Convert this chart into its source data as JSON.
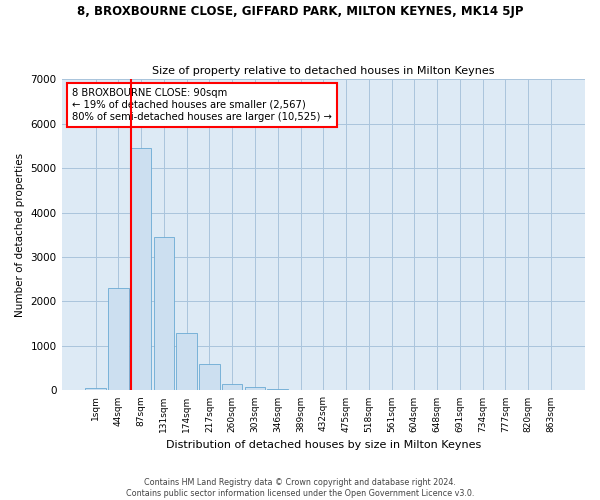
{
  "title": "8, BROXBOURNE CLOSE, GIFFARD PARK, MILTON KEYNES, MK14 5JP",
  "subtitle": "Size of property relative to detached houses in Milton Keynes",
  "xlabel": "Distribution of detached houses by size in Milton Keynes",
  "ylabel": "Number of detached properties",
  "bar_color": "#ccdff0",
  "bar_edge_color": "#6aaad4",
  "grid_color": "#aac4dc",
  "background_color": "#ddeaf5",
  "categories": [
    "1sqm",
    "44sqm",
    "87sqm",
    "131sqm",
    "174sqm",
    "217sqm",
    "260sqm",
    "303sqm",
    "346sqm",
    "389sqm",
    "432sqm",
    "475sqm",
    "518sqm",
    "561sqm",
    "604sqm",
    "648sqm",
    "691sqm",
    "734sqm",
    "777sqm",
    "820sqm",
    "863sqm"
  ],
  "values": [
    50,
    2300,
    5450,
    3450,
    1300,
    600,
    150,
    80,
    30,
    8,
    2,
    1,
    0,
    0,
    0,
    0,
    0,
    0,
    0,
    0,
    0
  ],
  "red_line_x": 2,
  "annotation_line1": "8 BROXBOURNE CLOSE: 90sqm",
  "annotation_line2": "← 19% of detached houses are smaller (2,567)",
  "annotation_line3": "80% of semi-detached houses are larger (10,525) →",
  "annotation_box_color": "white",
  "annotation_box_edge": "red",
  "ylim": [
    0,
    7000
  ],
  "yticks": [
    0,
    1000,
    2000,
    3000,
    4000,
    5000,
    6000,
    7000
  ],
  "footer_line1": "Contains HM Land Registry data © Crown copyright and database right 2024.",
  "footer_line2": "Contains public sector information licensed under the Open Government Licence v3.0."
}
